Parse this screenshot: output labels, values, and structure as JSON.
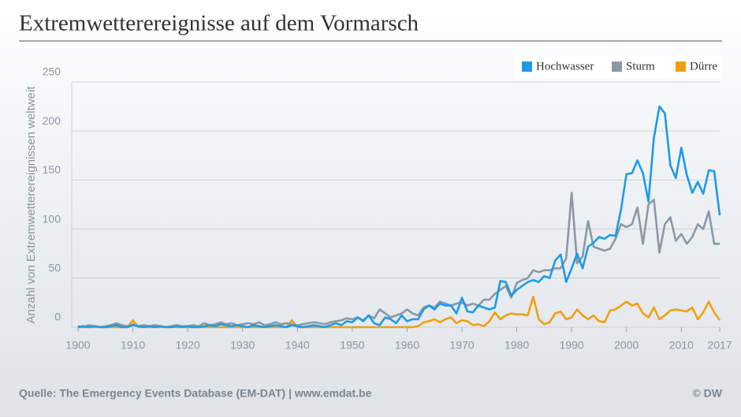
{
  "chart_data": {
    "type": "line",
    "title": "Extremwetterereignisse auf dem Vormarsch",
    "y_label": "Anzahl von Extremwetterereignissen weltweit",
    "source": "Quelle: The Emergency Events Database (EM-DAT) | www.emdat.be",
    "credit": "© DW",
    "x": [
      1900,
      1901,
      1902,
      1903,
      1904,
      1905,
      1906,
      1907,
      1908,
      1909,
      1910,
      1911,
      1912,
      1913,
      1914,
      1915,
      1916,
      1917,
      1918,
      1919,
      1920,
      1921,
      1922,
      1923,
      1924,
      1925,
      1926,
      1927,
      1928,
      1929,
      1930,
      1931,
      1932,
      1933,
      1934,
      1935,
      1936,
      1937,
      1938,
      1939,
      1940,
      1941,
      1942,
      1943,
      1944,
      1945,
      1946,
      1947,
      1948,
      1949,
      1950,
      1951,
      1952,
      1953,
      1954,
      1955,
      1956,
      1957,
      1958,
      1959,
      1960,
      1961,
      1962,
      1963,
      1964,
      1965,
      1966,
      1967,
      1968,
      1969,
      1970,
      1971,
      1972,
      1973,
      1974,
      1975,
      1976,
      1977,
      1978,
      1979,
      1980,
      1981,
      1982,
      1983,
      1984,
      1985,
      1986,
      1987,
      1988,
      1989,
      1990,
      1991,
      1992,
      1993,
      1994,
      1995,
      1996,
      1997,
      1998,
      1999,
      2000,
      2001,
      2002,
      2003,
      2004,
      2005,
      2006,
      2007,
      2008,
      2009,
      2010,
      2011,
      2012,
      2013,
      2014,
      2015,
      2016,
      2017
    ],
    "series": [
      {
        "name": "Hochwasser",
        "color": "#1e9be6",
        "values": [
          0,
          1,
          0,
          1,
          0,
          0,
          1,
          2,
          0,
          0,
          2,
          1,
          0,
          1,
          0,
          1,
          0,
          0,
          1,
          0,
          1,
          0,
          0,
          1,
          2,
          1,
          3,
          2,
          1,
          2,
          1,
          0,
          2,
          1,
          0,
          1,
          2,
          1,
          0,
          2,
          1,
          0,
          1,
          2,
          1,
          0,
          2,
          4,
          2,
          6,
          5,
          10,
          6,
          12,
          4,
          2,
          10,
          8,
          4,
          12,
          6,
          8,
          8,
          18,
          22,
          18,
          24,
          22,
          22,
          14,
          30,
          16,
          15,
          22,
          20,
          18,
          20,
          47,
          46,
          32,
          38,
          42,
          46,
          48,
          46,
          52,
          50,
          68,
          74,
          46,
          60,
          75,
          60,
          82,
          86,
          92,
          90,
          94,
          93,
          120,
          156,
          157,
          170,
          157,
          128,
          193,
          225,
          218,
          165,
          152,
          183,
          155,
          137,
          148,
          136,
          160,
          159,
          114
        ]
      },
      {
        "name": "Sturm",
        "color": "#8a99a8",
        "values": [
          1,
          0,
          2,
          1,
          0,
          1,
          2,
          4,
          2,
          1,
          3,
          1,
          2,
          1,
          2,
          1,
          0,
          1,
          2,
          1,
          1,
          2,
          1,
          4,
          2,
          3,
          5,
          3,
          4,
          2,
          3,
          4,
          3,
          5,
          2,
          3,
          5,
          3,
          4,
          3,
          2,
          3,
          4,
          5,
          4,
          3,
          5,
          6,
          7,
          9,
          8,
          10,
          7,
          12,
          9,
          18,
          14,
          10,
          12,
          14,
          18,
          14,
          12,
          20,
          22,
          20,
          26,
          24,
          22,
          24,
          25,
          22,
          24,
          22,
          28,
          28,
          34,
          38,
          42,
          30,
          45,
          48,
          50,
          58,
          56,
          58,
          58,
          60,
          60,
          70,
          137,
          65,
          72,
          108,
          82,
          80,
          78,
          80,
          90,
          105,
          102,
          105,
          122,
          85,
          125,
          130,
          76,
          105,
          112,
          88,
          95,
          85,
          92,
          105,
          100,
          118,
          85,
          85
        ]
      },
      {
        "name": "Dürre",
        "color": "#f0a010",
        "values": [
          0,
          0,
          0,
          0,
          0,
          0,
          0,
          0,
          0,
          0,
          7,
          0,
          0,
          0,
          0,
          0,
          0,
          0,
          0,
          0,
          0,
          0,
          0,
          0,
          0,
          0,
          0,
          0,
          0,
          0,
          0,
          0,
          0,
          0,
          0,
          0,
          0,
          0,
          0,
          7,
          0,
          0,
          0,
          0,
          0,
          0,
          0,
          0,
          0,
          0,
          0,
          0,
          0,
          0,
          0,
          0,
          0,
          0,
          0,
          0,
          0,
          0,
          1,
          5,
          6,
          8,
          5,
          8,
          10,
          4,
          7,
          6,
          2,
          3,
          1,
          6,
          15,
          8,
          12,
          14,
          13,
          13,
          12,
          31,
          8,
          3,
          5,
          14,
          16,
          8,
          10,
          18,
          12,
          8,
          12,
          6,
          5,
          17,
          18,
          22,
          26,
          22,
          24,
          14,
          10,
          20,
          8,
          12,
          17,
          18,
          17,
          16,
          20,
          8,
          15,
          26,
          15,
          7
        ]
      }
    ],
    "xlim": [
      1900,
      2017
    ],
    "xticks": [
      1900,
      1910,
      1920,
      1930,
      1940,
      1950,
      1960,
      1970,
      1980,
      1990,
      2000,
      2010,
      2017
    ],
    "ylim": [
      0,
      250
    ],
    "yticks": [
      0,
      50,
      100,
      150,
      200,
      250
    ],
    "grid": true,
    "legend": "top-right"
  }
}
